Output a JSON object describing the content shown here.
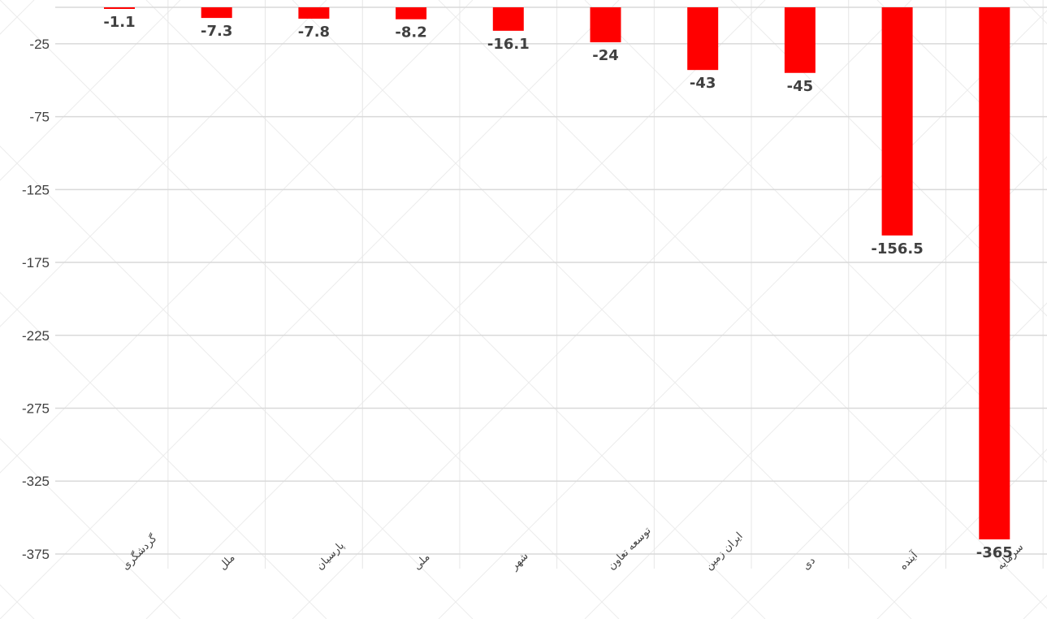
{
  "chart_data": {
    "type": "bar",
    "categories": [
      "گردشگری",
      "ملل",
      "پارسیان",
      "ملی",
      "شهر",
      "توسعه تعاون",
      "ایران زمین",
      "دی",
      "آینده",
      "سرمایه"
    ],
    "values": [
      -1.1,
      -7.3,
      -7.8,
      -8.2,
      -16.1,
      -24,
      -43,
      -45,
      -156.5,
      -365
    ],
    "value_labels": [
      "-1.1",
      "-7.3",
      "-7.8",
      "-8.2",
      "-16.1",
      "-24",
      "-43",
      "-45",
      "-156.5",
      "-365"
    ],
    "yticks": [
      -25,
      -75,
      -125,
      -175,
      -225,
      -275,
      -325,
      -375
    ],
    "ylim": [
      -386,
      22
    ],
    "title": "",
    "xlabel": "",
    "ylabel": "",
    "grid": true,
    "legend": "none",
    "bar_color": "#ff0000",
    "gridline_color": "#d9d9d9",
    "text_color": "#404040"
  }
}
